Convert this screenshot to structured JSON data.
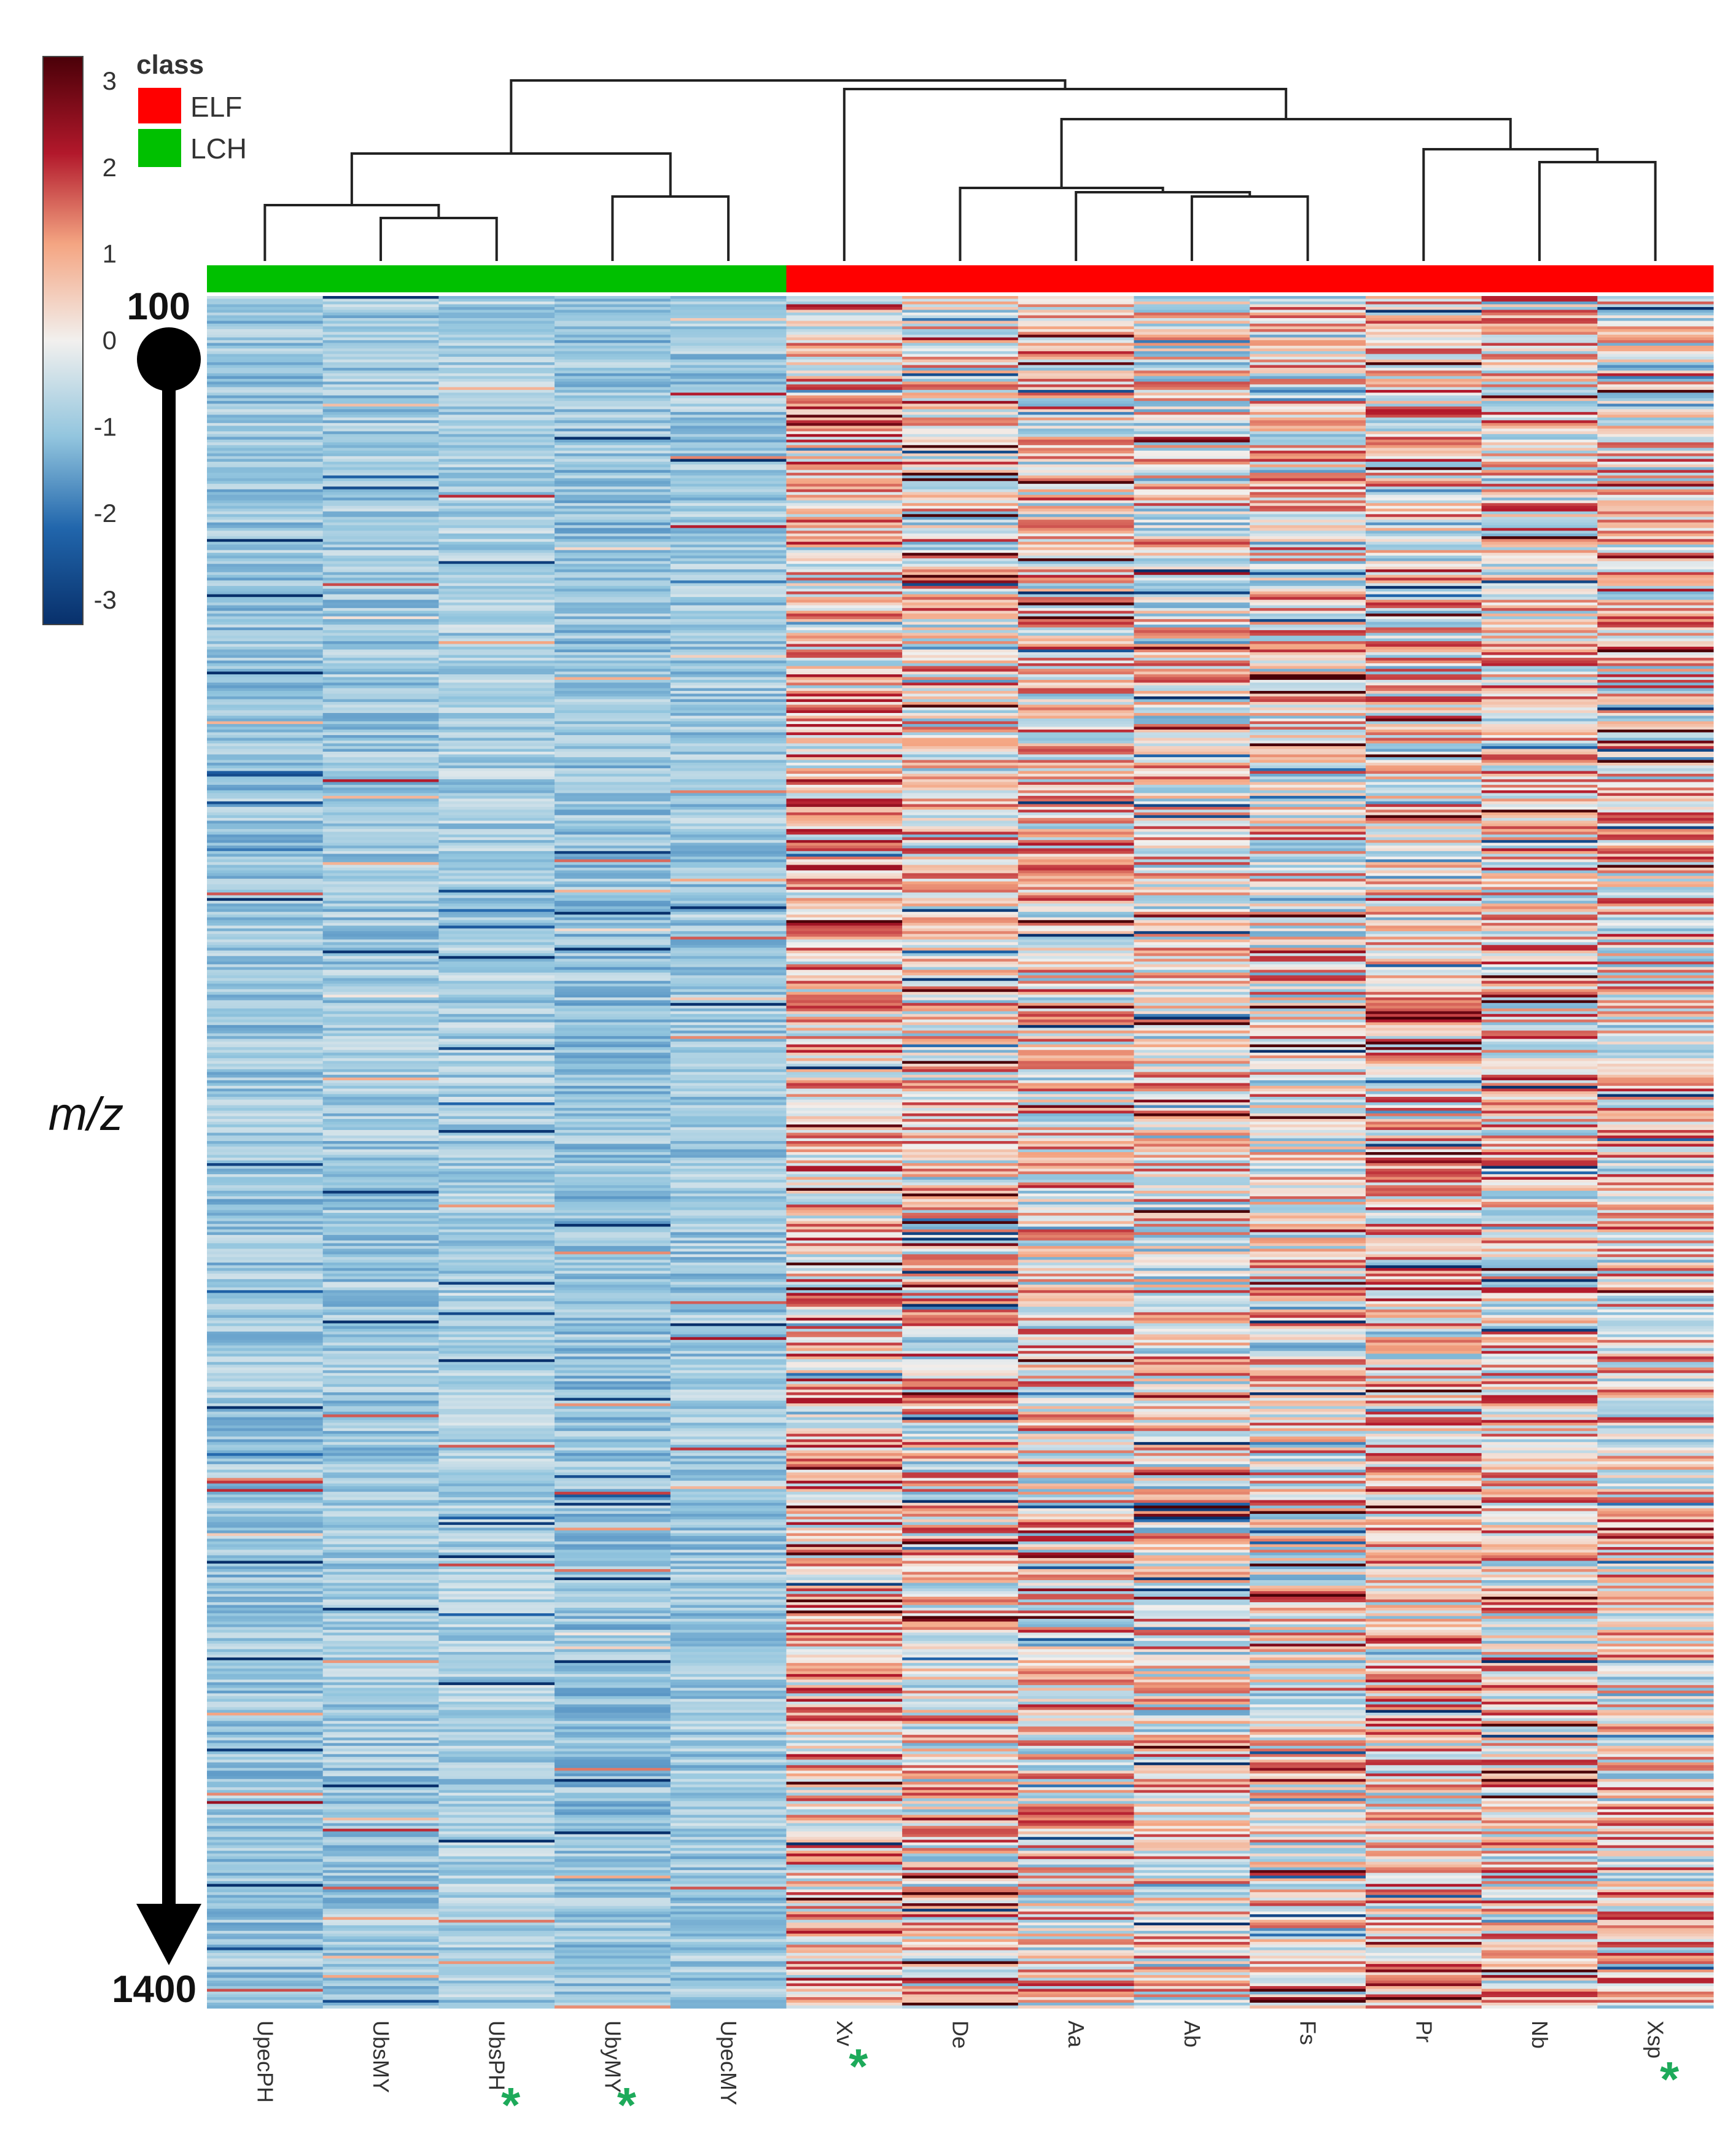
{
  "chart_data": {
    "type": "heatmap",
    "title": "",
    "ylabel": "m/z",
    "y_range": [
      100,
      1400
    ],
    "y_range_labels": {
      "top": "100",
      "bottom": "1400"
    },
    "colorbar": {
      "range": [
        -3,
        3
      ],
      "ticks": [
        "3",
        "2",
        "1",
        "0",
        "-1",
        "-2",
        "-3"
      ],
      "colors": {
        "low": "#08306b",
        "mid": "#f2f0ee",
        "high": "#4a0008"
      }
    },
    "class_legend": {
      "title": "class",
      "entries": [
        {
          "label": "ELF",
          "color": "#ff0000"
        },
        {
          "label": "LCH",
          "color": "#00c000"
        }
      ]
    },
    "samples": [
      {
        "name": "UpecPH",
        "class": "LCH",
        "starred": false
      },
      {
        "name": "UbsMY",
        "class": "LCH",
        "starred": false
      },
      {
        "name": "UbsPH",
        "class": "LCH",
        "starred": true
      },
      {
        "name": "UbyMY",
        "class": "LCH",
        "starred": true
      },
      {
        "name": "UpecMY",
        "class": "LCH",
        "starred": false
      },
      {
        "name": "Xv",
        "class": "ELF",
        "starred": true
      },
      {
        "name": "De",
        "class": "ELF",
        "starred": false
      },
      {
        "name": "Aa",
        "class": "ELF",
        "starred": false
      },
      {
        "name": "Ab",
        "class": "ELF",
        "starred": false
      },
      {
        "name": "Fs",
        "class": "ELF",
        "starred": false
      },
      {
        "name": "Pr",
        "class": "ELF",
        "starred": false
      },
      {
        "name": "Nb",
        "class": "ELF",
        "starred": false
      },
      {
        "name": "Xsp",
        "class": "ELF",
        "starred": true
      }
    ],
    "column_mean_zscore": [
      -0.9,
      -0.85,
      -0.75,
      -0.95,
      -0.85,
      0.6,
      0.3,
      0.35,
      0.2,
      0.25,
      0.45,
      0.4,
      0.35
    ],
    "dendrogram_merges": [
      {
        "left": 1,
        "right": 2,
        "height": 0.1
      },
      {
        "left": 0,
        "right": "m0",
        "height": 0.13
      },
      {
        "left": 3,
        "right": 4,
        "height": 0.15
      },
      {
        "left": "m1",
        "right": "m2",
        "height": 0.25
      },
      {
        "left": 8,
        "right": 9,
        "height": 0.15
      },
      {
        "left": 7,
        "right": "m4",
        "height": 0.16
      },
      {
        "left": 6,
        "right": "m5",
        "height": 0.17
      },
      {
        "left": 11,
        "right": 12,
        "height": 0.23
      },
      {
        "left": 10,
        "right": "m7",
        "height": 0.26
      },
      {
        "left": "m6",
        "right": "m8",
        "height": 0.33
      },
      {
        "left": 5,
        "right": "m9",
        "height": 0.4
      },
      {
        "left": "m3",
        "right": "m10",
        "height": 0.42
      }
    ],
    "n_features": 620
  }
}
